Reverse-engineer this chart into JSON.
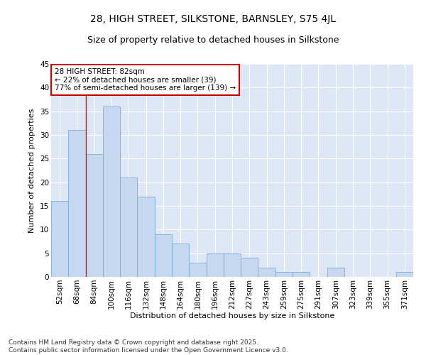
{
  "title1": "28, HIGH STREET, SILKSTONE, BARNSLEY, S75 4JL",
  "title2": "Size of property relative to detached houses in Silkstone",
  "xlabel": "Distribution of detached houses by size in Silkstone",
  "ylabel": "Number of detached properties",
  "categories": [
    "52sqm",
    "68sqm",
    "84sqm",
    "100sqm",
    "116sqm",
    "132sqm",
    "148sqm",
    "164sqm",
    "180sqm",
    "196sqm",
    "212sqm",
    "227sqm",
    "243sqm",
    "259sqm",
    "275sqm",
    "291sqm",
    "307sqm",
    "323sqm",
    "339sqm",
    "355sqm",
    "371sqm"
  ],
  "values": [
    16,
    31,
    26,
    36,
    21,
    17,
    9,
    7,
    3,
    5,
    5,
    4,
    2,
    1,
    1,
    0,
    2,
    0,
    0,
    0,
    1
  ],
  "bar_color": "#c5d8f0",
  "bar_edge_color": "#7aafd4",
  "red_line_x": 1.5,
  "annotation_title": "28 HIGH STREET: 82sqm",
  "annotation_line1": "← 22% of detached houses are smaller (39)",
  "annotation_line2": "77% of semi-detached houses are larger (139) →",
  "annotation_box_color": "#ffffff",
  "annotation_box_edge": "#cc0000",
  "ylim": [
    0,
    45
  ],
  "yticks": [
    0,
    5,
    10,
    15,
    20,
    25,
    30,
    35,
    40,
    45
  ],
  "bg_color": "#dde6f5",
  "footer": "Contains HM Land Registry data © Crown copyright and database right 2025.\nContains public sector information licensed under the Open Government Licence v3.0.",
  "title1_fontsize": 10,
  "title2_fontsize": 9,
  "axis_label_fontsize": 8,
  "tick_fontsize": 7.5,
  "annotation_fontsize": 7.5,
  "footer_fontsize": 6.5
}
